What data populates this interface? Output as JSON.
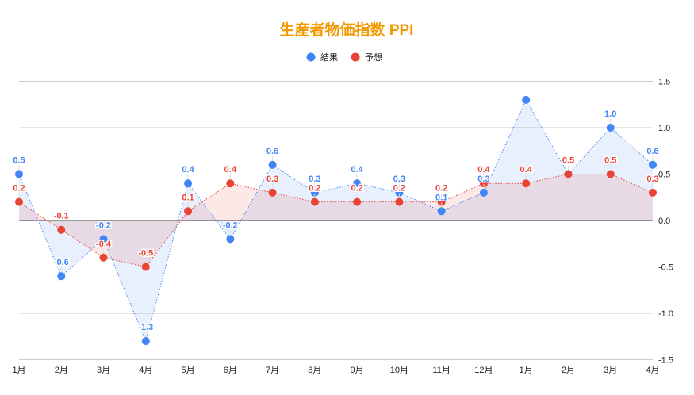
{
  "chart_data": {
    "type": "line",
    "title": "生産者物価指数  PPI",
    "title_color": "#f29900",
    "legend_position": "top",
    "grid": true,
    "x": [
      "1月",
      "2月",
      "3月",
      "4月",
      "5月",
      "6月",
      "7月",
      "8月",
      "9月",
      "10月",
      "11月",
      "12月",
      "1月",
      "2月",
      "3月",
      "4月"
    ],
    "ylim": [
      -1.5,
      1.5
    ],
    "yticks": [
      "1.5",
      "1.0",
      "0.5",
      "0.0",
      "-0.5",
      "-1.0",
      "-1.5"
    ],
    "series": [
      {
        "name": "結果",
        "color": "#4285f4",
        "values": [
          0.5,
          -0.6,
          -0.2,
          -1.3,
          0.4,
          -0.2,
          0.6,
          0.3,
          0.4,
          0.3,
          0.1,
          0.3,
          1.3,
          0.5,
          1.0,
          0.6
        ],
        "labels": [
          "0.5",
          "-0.6",
          "-0.2",
          "-1.3",
          "0.4",
          "-0.2",
          "0.6",
          "0.3",
          "0.4",
          "0.3",
          "0.1",
          "0.3",
          null,
          null,
          "1.0",
          "0.6"
        ]
      },
      {
        "name": "予想",
        "color": "#ea4335",
        "values": [
          0.2,
          -0.1,
          -0.4,
          -0.5,
          0.1,
          0.4,
          0.3,
          0.2,
          0.2,
          0.2,
          0.2,
          0.4,
          0.4,
          0.5,
          0.5,
          0.3
        ],
        "labels": [
          "0.2",
          "-0.1",
          "-0.4",
          "-0.5",
          "0.1",
          "0.4",
          "0.3",
          "0.2",
          "0.2",
          "0.2",
          "0.2",
          "0.4",
          "0.4",
          "0.5",
          "0.5",
          "0.3"
        ]
      }
    ]
  }
}
